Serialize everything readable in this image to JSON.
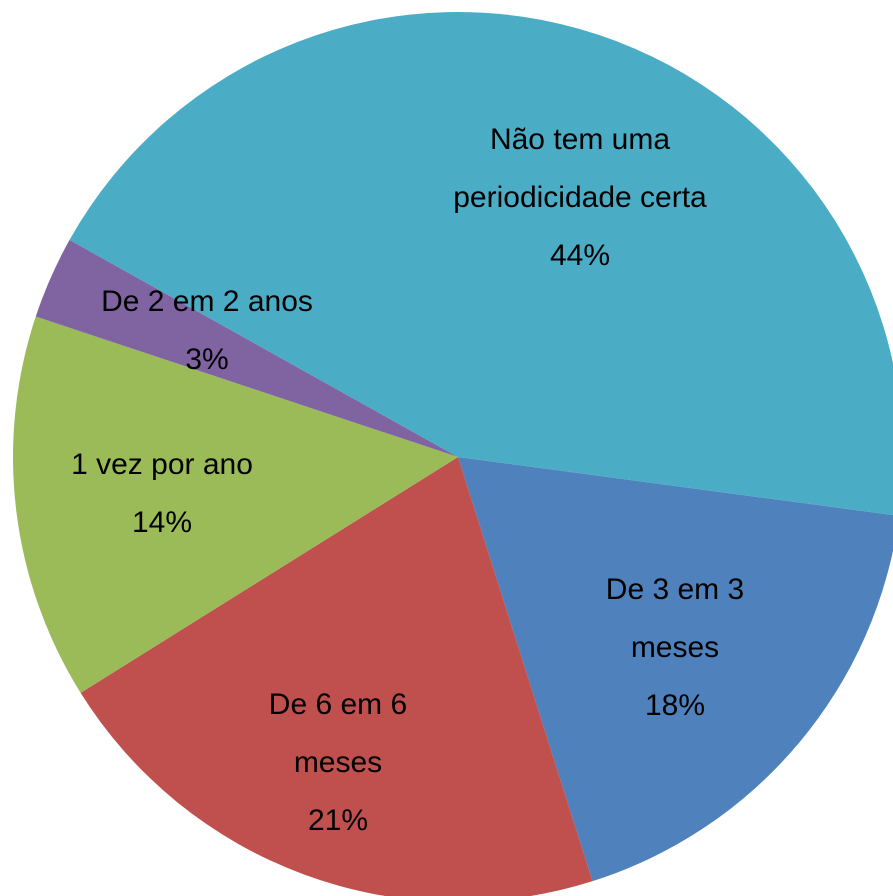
{
  "chart_data": {
    "type": "pie",
    "categories": [
      "De 3 em 3 meses",
      "De 6 em 6 meses",
      "1 vez por ano",
      "De 2 em 2 anos",
      "Não tem uma periodicidade certa"
    ],
    "values": [
      18,
      21,
      14,
      3,
      44
    ],
    "value_labels": [
      "18%",
      "21%",
      "14%",
      "3%",
      "44%"
    ],
    "colors": [
      "#4F81BD",
      "#C0504D",
      "#9BBB59",
      "#8064A2",
      "#4BACC6"
    ]
  }
}
